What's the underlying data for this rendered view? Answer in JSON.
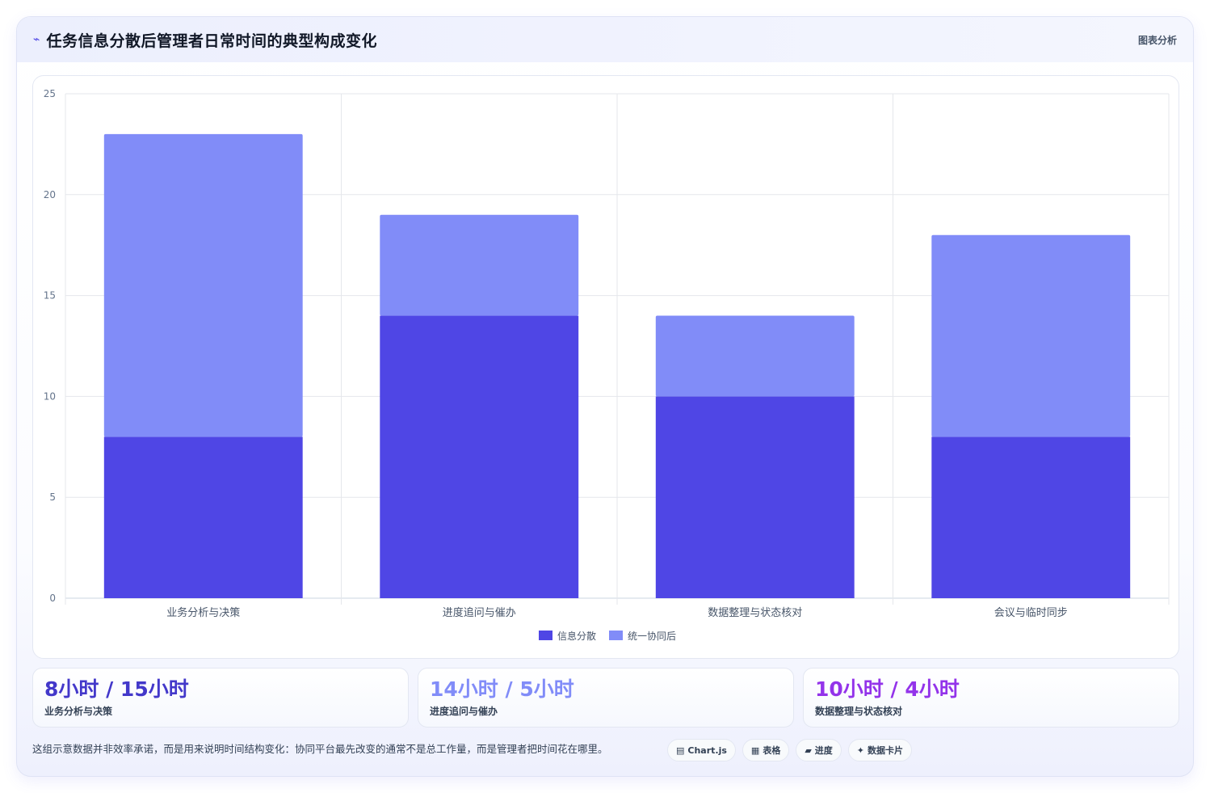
{
  "header": {
    "icon": "chart-line-icon",
    "title": "任务信息分散后管理者日常时间的典型构成变化",
    "tag": "图表分析"
  },
  "chart_data": {
    "type": "bar",
    "stacked": true,
    "categories": [
      "业务分析与决策",
      "进度追问与催办",
      "数据整理与状态核对",
      "会议与临时同步"
    ],
    "series": [
      {
        "name": "信息分散",
        "values": [
          8,
          14,
          10,
          8
        ],
        "color": "#4f46e5"
      },
      {
        "name": "统一协同后",
        "values": [
          15,
          5,
          4,
          10
        ],
        "color": "#818cf8"
      }
    ],
    "ylim": [
      0,
      25
    ],
    "yticks": [
      0,
      5,
      10,
      15,
      20,
      25
    ],
    "grid": true,
    "legend": "bottom"
  },
  "stats": [
    {
      "value": "8小时 / 15小时",
      "label": "业务分析与决策",
      "color": "#4338ca"
    },
    {
      "value": "14小时 / 5小时",
      "label": "进度追问与催办",
      "color": "#818cf8"
    },
    {
      "value": "10小时 / 4小时",
      "label": "数据整理与状态核对",
      "color": "#9333ea"
    }
  ],
  "footer": {
    "note": "这组示意数据并非效率承诺，而是用来说明时间结构变化：协同平台最先改变的通常不是总工作量，而是管理者把时间花在哪里。",
    "chips": [
      {
        "icon": "chart-icon",
        "label": "Chart.js"
      },
      {
        "icon": "table-icon",
        "label": "表格"
      },
      {
        "icon": "progress-icon",
        "label": "进度"
      },
      {
        "icon": "sparkle-icon",
        "label": "数据卡片"
      }
    ]
  }
}
